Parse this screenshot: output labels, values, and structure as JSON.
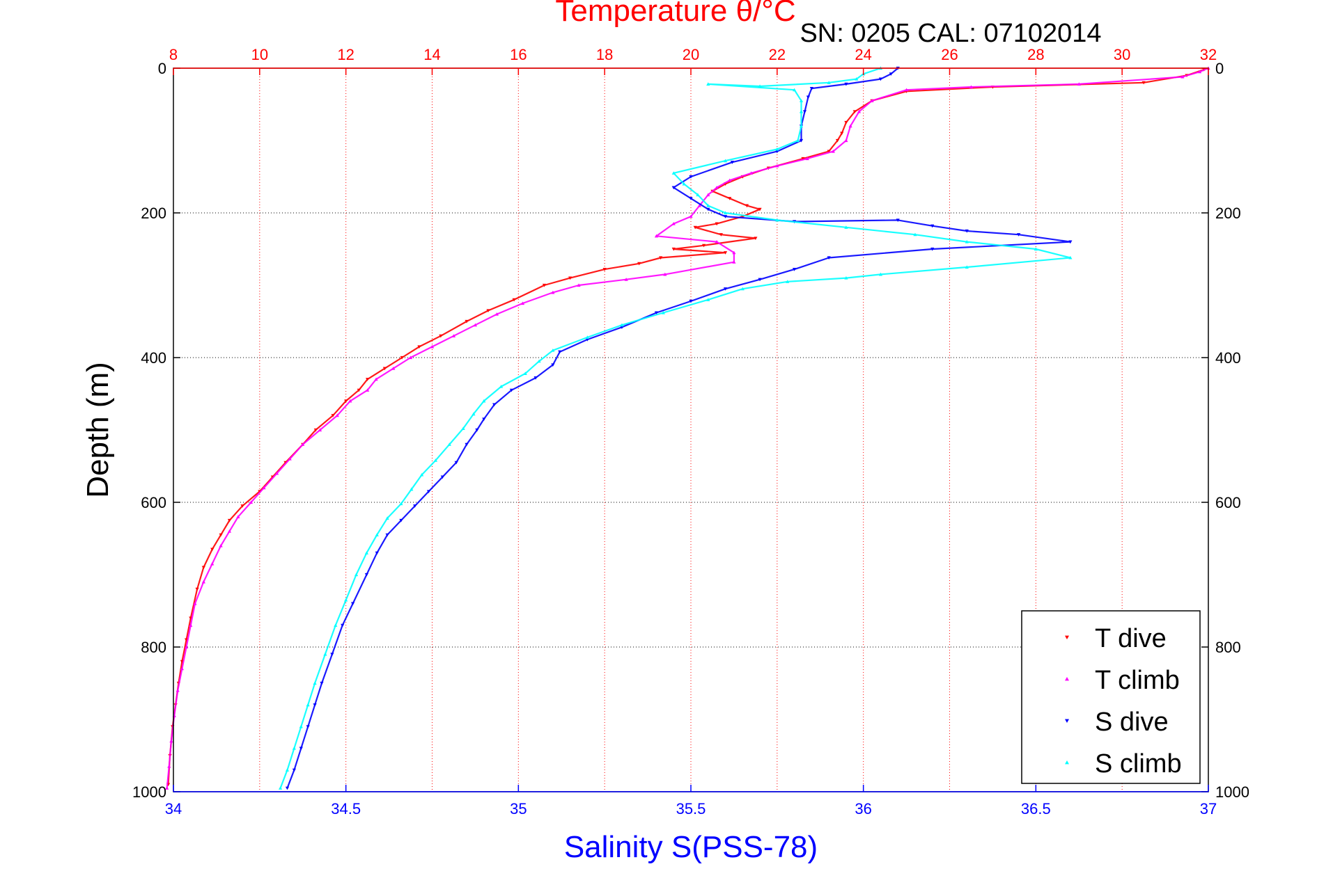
{
  "chart_data": {
    "type": "scatter",
    "title": "Temperature θ/°C",
    "subtitle": "SN: 0205  CAL: 07102014",
    "xlabel_top": "Temperature θ/°C",
    "xlabel_bottom": "Salinity S(PSS-78)",
    "ylabel": "Depth (m)",
    "top_axis": {
      "min": 8,
      "max": 32,
      "ticks": [
        8,
        10,
        12,
        14,
        16,
        18,
        20,
        22,
        24,
        26,
        28,
        30,
        32
      ],
      "color": "#ff0000"
    },
    "bottom_axis": {
      "min": 34,
      "max": 37,
      "ticks": [
        "34",
        "34.5",
        "35",
        "35.5",
        "36",
        "36.5",
        "37"
      ],
      "color": "#0000ff"
    },
    "y_axis": {
      "min": 0,
      "max": 1000,
      "reversed": true,
      "ticks": [
        0,
        200,
        400,
        600,
        800,
        1000
      ]
    },
    "grid": true,
    "legend_position": "bottom-right",
    "series": [
      {
        "name": "T dive",
        "axis": "temperature",
        "color": "#ff0000",
        "marker": "triangle-down",
        "points": [
          [
            31.9,
            2
          ],
          [
            31.5,
            10
          ],
          [
            30.5,
            20
          ],
          [
            27,
            26
          ],
          [
            25,
            32
          ],
          [
            24.2,
            45
          ],
          [
            23.8,
            60
          ],
          [
            23.6,
            75
          ],
          [
            23.5,
            90
          ],
          [
            23.4,
            100
          ],
          [
            23.2,
            115
          ],
          [
            22.6,
            125
          ],
          [
            21.8,
            138
          ],
          [
            21.2,
            150
          ],
          [
            20.8,
            160
          ],
          [
            20.5,
            170
          ],
          [
            20.9,
            180
          ],
          [
            21.3,
            190
          ],
          [
            21.6,
            195
          ],
          [
            21.2,
            205
          ],
          [
            20.6,
            215
          ],
          [
            20.1,
            220
          ],
          [
            20.7,
            230
          ],
          [
            21.5,
            235
          ],
          [
            20.3,
            245
          ],
          [
            19.6,
            250
          ],
          [
            20.8,
            255
          ],
          [
            19.3,
            262
          ],
          [
            18.8,
            270
          ],
          [
            18,
            278
          ],
          [
            17.2,
            290
          ],
          [
            16.6,
            300
          ],
          [
            15.9,
            320
          ],
          [
            15.3,
            335
          ],
          [
            14.8,
            350
          ],
          [
            14.2,
            370
          ],
          [
            13.7,
            385
          ],
          [
            13.3,
            400
          ],
          [
            12.9,
            415
          ],
          [
            12.5,
            430
          ],
          [
            12.3,
            445
          ],
          [
            12,
            460
          ],
          [
            11.7,
            480
          ],
          [
            11.3,
            500
          ],
          [
            11,
            520
          ],
          [
            10.6,
            545
          ],
          [
            10.3,
            565
          ],
          [
            10,
            585
          ],
          [
            9.6,
            605
          ],
          [
            9.3,
            625
          ],
          [
            9.1,
            645
          ],
          [
            8.9,
            665
          ],
          [
            8.7,
            690
          ],
          [
            8.55,
            720
          ],
          [
            8.4,
            760
          ],
          [
            8.3,
            790
          ],
          [
            8.2,
            820
          ],
          [
            8.12,
            850
          ],
          [
            8.05,
            880
          ],
          [
            7.98,
            910
          ],
          [
            7.92,
            950
          ],
          [
            7.88,
            990
          ]
        ]
      },
      {
        "name": "T climb",
        "axis": "temperature",
        "color": "#ff00ff",
        "marker": "triangle-up",
        "points": [
          [
            32,
            0
          ],
          [
            31.8,
            5
          ],
          [
            31.4,
            12
          ],
          [
            29,
            22
          ],
          [
            26.5,
            26
          ],
          [
            25,
            30
          ],
          [
            24.2,
            45
          ],
          [
            23.9,
            60
          ],
          [
            23.7,
            80
          ],
          [
            23.6,
            100
          ],
          [
            23.3,
            115
          ],
          [
            22.7,
            125
          ],
          [
            22,
            135
          ],
          [
            21.4,
            145
          ],
          [
            20.9,
            155
          ],
          [
            20.6,
            165
          ],
          [
            20.4,
            175
          ],
          [
            20.2,
            190
          ],
          [
            20,
            205
          ],
          [
            19.6,
            215
          ],
          [
            19.2,
            232
          ],
          [
            20.6,
            240
          ],
          [
            21,
            255
          ],
          [
            21,
            268
          ],
          [
            19.4,
            285
          ],
          [
            18.5,
            292
          ],
          [
            17.4,
            300
          ],
          [
            16.8,
            310
          ],
          [
            16.1,
            325
          ],
          [
            15.5,
            340
          ],
          [
            15,
            355
          ],
          [
            14.5,
            370
          ],
          [
            14,
            385
          ],
          [
            13.5,
            400
          ],
          [
            13.1,
            415
          ],
          [
            12.7,
            430
          ],
          [
            12.5,
            445
          ],
          [
            12.1,
            460
          ],
          [
            11.8,
            480
          ],
          [
            11.4,
            500
          ],
          [
            11,
            520
          ],
          [
            10.7,
            540
          ],
          [
            10.4,
            560
          ],
          [
            10.1,
            580
          ],
          [
            9.8,
            600
          ],
          [
            9.5,
            620
          ],
          [
            9.3,
            640
          ],
          [
            9.1,
            660
          ],
          [
            8.9,
            685
          ],
          [
            8.7,
            710
          ],
          [
            8.5,
            740
          ],
          [
            8.4,
            770
          ],
          [
            8.3,
            800
          ],
          [
            8.2,
            830
          ],
          [
            8.1,
            860
          ],
          [
            8.02,
            895
          ],
          [
            7.95,
            930
          ],
          [
            7.9,
            965
          ],
          [
            7.85,
            995
          ]
        ]
      },
      {
        "name": "S dive",
        "axis": "salinity",
        "color": "#0000ff",
        "marker": "triangle-down",
        "points": [
          [
            36.1,
            0
          ],
          [
            36.08,
            8
          ],
          [
            36.05,
            15
          ],
          [
            35.95,
            22
          ],
          [
            35.85,
            28
          ],
          [
            35.84,
            40
          ],
          [
            35.83,
            60
          ],
          [
            35.82,
            80
          ],
          [
            35.82,
            100
          ],
          [
            35.75,
            115
          ],
          [
            35.62,
            130
          ],
          [
            35.5,
            150
          ],
          [
            35.45,
            165
          ],
          [
            35.5,
            180
          ],
          [
            35.55,
            195
          ],
          [
            35.6,
            205
          ],
          [
            35.8,
            212
          ],
          [
            36.1,
            210
          ],
          [
            36.2,
            218
          ],
          [
            36.3,
            225
          ],
          [
            36.45,
            230
          ],
          [
            36.6,
            240
          ],
          [
            36.2,
            250
          ],
          [
            35.9,
            262
          ],
          [
            35.8,
            278
          ],
          [
            35.7,
            292
          ],
          [
            35.6,
            305
          ],
          [
            35.5,
            322
          ],
          [
            35.4,
            338
          ],
          [
            35.3,
            358
          ],
          [
            35.2,
            375
          ],
          [
            35.12,
            392
          ],
          [
            35.1,
            410
          ],
          [
            35.05,
            428
          ],
          [
            34.98,
            445
          ],
          [
            34.93,
            465
          ],
          [
            34.9,
            485
          ],
          [
            34.88,
            500
          ],
          [
            34.85,
            520
          ],
          [
            34.82,
            545
          ],
          [
            34.78,
            565
          ],
          [
            34.74,
            585
          ],
          [
            34.7,
            605
          ],
          [
            34.66,
            625
          ],
          [
            34.62,
            645
          ],
          [
            34.59,
            670
          ],
          [
            34.56,
            700
          ],
          [
            34.52,
            740
          ],
          [
            34.49,
            770
          ],
          [
            34.46,
            810
          ],
          [
            34.43,
            850
          ],
          [
            34.41,
            880
          ],
          [
            34.39,
            910
          ],
          [
            34.37,
            940
          ],
          [
            34.35,
            970
          ],
          [
            34.33,
            995
          ]
        ]
      },
      {
        "name": "S climb",
        "axis": "salinity",
        "color": "#00ffff",
        "marker": "triangle-up",
        "points": [
          [
            36.05,
            0
          ],
          [
            36.0,
            8
          ],
          [
            35.98,
            15
          ],
          [
            35.9,
            20
          ],
          [
            35.7,
            25
          ],
          [
            35.55,
            22
          ],
          [
            35.8,
            30
          ],
          [
            35.82,
            45
          ],
          [
            35.82,
            60
          ],
          [
            35.82,
            80
          ],
          [
            35.81,
            100
          ],
          [
            35.75,
            112
          ],
          [
            35.6,
            128
          ],
          [
            35.45,
            145
          ],
          [
            35.48,
            160
          ],
          [
            35.52,
            175
          ],
          [
            35.55,
            190
          ],
          [
            35.6,
            200
          ],
          [
            35.75,
            210
          ],
          [
            35.95,
            220
          ],
          [
            36.15,
            230
          ],
          [
            36.3,
            240
          ],
          [
            36.5,
            250
          ],
          [
            36.6,
            262
          ],
          [
            36.3,
            275
          ],
          [
            36.05,
            285
          ],
          [
            35.95,
            290
          ],
          [
            35.78,
            295
          ],
          [
            35.65,
            305
          ],
          [
            35.55,
            320
          ],
          [
            35.42,
            338
          ],
          [
            35.3,
            355
          ],
          [
            35.2,
            372
          ],
          [
            35.1,
            390
          ],
          [
            35.06,
            405
          ],
          [
            35.02,
            422
          ],
          [
            34.95,
            440
          ],
          [
            34.9,
            460
          ],
          [
            34.87,
            478
          ],
          [
            34.84,
            498
          ],
          [
            34.8,
            520
          ],
          [
            34.76,
            542
          ],
          [
            34.72,
            562
          ],
          [
            34.69,
            582
          ],
          [
            34.66,
            602
          ],
          [
            34.62,
            622
          ],
          [
            34.59,
            645
          ],
          [
            34.56,
            670
          ],
          [
            34.53,
            700
          ],
          [
            34.5,
            735
          ],
          [
            34.47,
            770
          ],
          [
            34.44,
            810
          ],
          [
            34.41,
            850
          ],
          [
            34.39,
            880
          ],
          [
            34.37,
            910
          ],
          [
            34.35,
            940
          ],
          [
            34.33,
            970
          ],
          [
            34.31,
            995
          ]
        ]
      }
    ]
  }
}
